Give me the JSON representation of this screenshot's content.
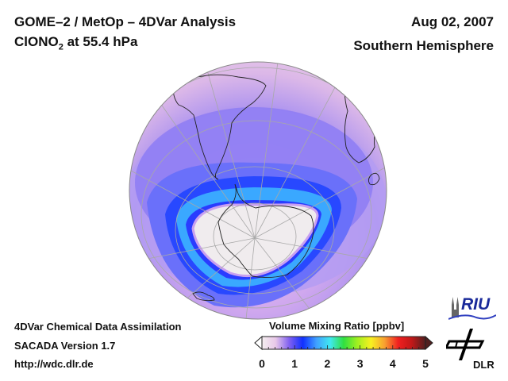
{
  "header": {
    "title_line1": "GOME–2 / MetOp – 4DVar Analysis",
    "species": "ClONO",
    "species_sub": "2",
    "species_rest": " at 55.4 hPa",
    "date": "Aug 02, 2007",
    "region": "Southern Hemisphere"
  },
  "footer": {
    "line1": "4DVar Chemical Data Assimilation",
    "line2": "SACADA Version 1.7",
    "line3": "http://wdc.dlr.de"
  },
  "colorbar": {
    "title": "Volume Mixing Ratio [ppbv]",
    "ticks": [
      "0",
      "1",
      "2",
      "3",
      "4",
      "5"
    ],
    "range": [
      0,
      5
    ],
    "stops": [
      "#f4eef0",
      "#e8c8e8",
      "#8060f0",
      "#1030ff",
      "#40a0ff",
      "#40e8f0",
      "#30e040",
      "#a0f020",
      "#f8f020",
      "#f8a030",
      "#f02020",
      "#c01818",
      "#502020"
    ]
  },
  "logos": {
    "riu": "RIU",
    "dlr": "DLR"
  },
  "map": {
    "projection": "orthographic",
    "hemisphere": "south",
    "colors": {
      "background_low": "#e6c0e6",
      "mid": "#9a80f0",
      "band": "#4060ff",
      "vortex_edge": "#30b0ff",
      "vortex_inner": "#f0ecec",
      "coast": "#222222",
      "grid": "#a8a8a8"
    }
  }
}
